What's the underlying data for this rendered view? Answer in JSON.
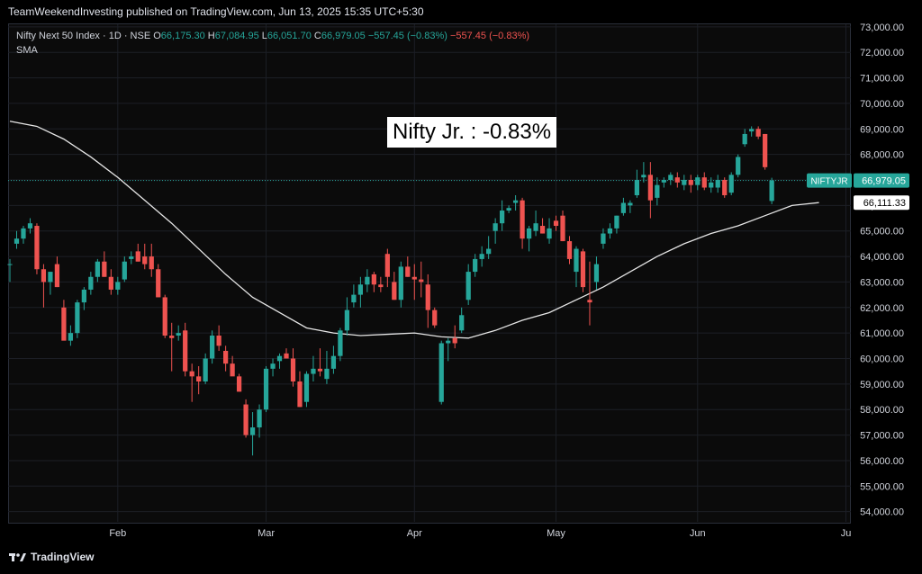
{
  "header": {
    "published": "TeamWeekendInvesting published on TradingView.com, Jun 13, 2025 15:35 UTC+5:30"
  },
  "legend": {
    "symbol": "Nifty Next 50 Index · 1D · NSE",
    "open_label": "O",
    "open": "66,175.30",
    "high_label": "H",
    "high": "67,084.95",
    "low_label": "L",
    "low": "66,051.70",
    "close_label": "C",
    "close": "66,979.05",
    "change": "−557.45 (−0.83%)",
    "change2": "−557.45 (−0.83%)",
    "indicator": "SMA"
  },
  "annotation": "Nifty Jr. : -0.83%",
  "footer": {
    "brand": "TradingView",
    "logo_icon": "tradingview-logo-icon"
  },
  "colors": {
    "up": "#26a69a",
    "down": "#ef5350",
    "sma": "#e6e6e6",
    "background": "#0b0b0b"
  },
  "chart_data": {
    "type": "candlestick",
    "y_ticks": [
      54000,
      55000,
      56000,
      57000,
      58000,
      59000,
      60000,
      61000,
      62000,
      63000,
      64000,
      65000,
      66000,
      67000,
      68000,
      69000,
      70000,
      71000,
      72000,
      73000
    ],
    "y_tick_labels": [
      "54,000.00",
      "55,000.00",
      "56,000.00",
      "57,000.00",
      "58,000.00",
      "59,000.00",
      "60,000.00",
      "61,000.00",
      "62,000.00",
      "63,000.00",
      "64,000.00",
      "65,000.00",
      "66,000.00",
      "67,000.00",
      "68,000.00",
      "69,000.00",
      "70,000.00",
      "71,000.00",
      "72,000.00",
      "73,000.00"
    ],
    "ylim": [
      53600,
      73100
    ],
    "x_tick_labels": [
      {
        "label": "Feb",
        "index": 16
      },
      {
        "label": "Mar",
        "index": 38
      },
      {
        "label": "Apr",
        "index": 60
      },
      {
        "label": "May",
        "index": 81
      },
      {
        "label": "Jun",
        "index": 102
      },
      {
        "label": "Ju",
        "index": 124
      }
    ],
    "x_count": 125,
    "last_price_tag": {
      "symbol": "NIFTYJR",
      "value": 66979.05,
      "label": "66,979.05"
    },
    "sma_tag": {
      "value": 66111.33,
      "label": "66,111.33"
    },
    "candles": [
      [
        63700,
        63900,
        63000,
        63700
      ],
      [
        64500,
        65000,
        64300,
        64700
      ],
      [
        64700,
        65200,
        64500,
        65100
      ],
      [
        65100,
        65500,
        64900,
        65300
      ],
      [
        65200,
        65300,
        63300,
        63500
      ],
      [
        63500,
        63700,
        62000,
        63000
      ],
      [
        63000,
        63400,
        62500,
        63400
      ],
      [
        63700,
        64000,
        62800,
        62800
      ],
      [
        62000,
        62300,
        60800,
        60700
      ],
      [
        60700,
        61300,
        60500,
        61000
      ],
      [
        61000,
        62300,
        60800,
        62200
      ],
      [
        62200,
        62800,
        61900,
        62700
      ],
      [
        62700,
        63400,
        62500,
        63200
      ],
      [
        63200,
        63900,
        63000,
        63800
      ],
      [
        63800,
        64200,
        63200,
        63200
      ],
      [
        63200,
        63500,
        62500,
        62700
      ],
      [
        62700,
        63200,
        62500,
        63000
      ],
      [
        63100,
        64000,
        63000,
        63800
      ],
      [
        63900,
        64200,
        63700,
        64000
      ],
      [
        64200,
        64500,
        63800,
        63800
      ],
      [
        64000,
        64500,
        63500,
        63700
      ],
      [
        64000,
        64500,
        63200,
        63500
      ],
      [
        63500,
        63700,
        62400,
        62400
      ],
      [
        62400,
        62500,
        60800,
        60900
      ],
      [
        60900,
        61400,
        59500,
        60800
      ],
      [
        60900,
        61300,
        60700,
        61000
      ],
      [
        61100,
        61400,
        59300,
        59500
      ],
      [
        59500,
        59800,
        58300,
        59300
      ],
      [
        59300,
        59700,
        58600,
        59100
      ],
      [
        59100,
        60200,
        59000,
        60000
      ],
      [
        60000,
        61100,
        59800,
        60900
      ],
      [
        60900,
        61300,
        60300,
        60500
      ],
      [
        60300,
        60500,
        59500,
        59800
      ],
      [
        59800,
        60100,
        59400,
        59300
      ],
      [
        59300,
        59400,
        58700,
        58700
      ],
      [
        58200,
        58400,
        56900,
        57000
      ],
      [
        57000,
        57900,
        56200,
        57300
      ],
      [
        57300,
        58200,
        56900,
        58000
      ],
      [
        58000,
        59700,
        57900,
        59600
      ],
      [
        59600,
        60000,
        59300,
        59800
      ],
      [
        59900,
        60200,
        59600,
        60100
      ],
      [
        60200,
        60400,
        60000,
        60000
      ],
      [
        60000,
        60400,
        58900,
        59100
      ],
      [
        59100,
        59500,
        58100,
        58100
      ],
      [
        58300,
        59500,
        58100,
        59400
      ],
      [
        59400,
        60100,
        59100,
        59600
      ],
      [
        59600,
        60400,
        59300,
        59500
      ],
      [
        59200,
        60300,
        59000,
        59600
      ],
      [
        59600,
        60500,
        59400,
        60100
      ],
      [
        60100,
        61200,
        59900,
        61100
      ],
      [
        61100,
        62400,
        60900,
        61900
      ],
      [
        62200,
        62900,
        62000,
        62500
      ],
      [
        62500,
        63200,
        62000,
        62900
      ],
      [
        62900,
        63500,
        62600,
        63200
      ],
      [
        63300,
        63400,
        62600,
        62900
      ],
      [
        62900,
        63200,
        62600,
        62800
      ],
      [
        64100,
        64300,
        62800,
        63200
      ],
      [
        63000,
        63400,
        62300,
        62300
      ],
      [
        62300,
        63800,
        62000,
        63600
      ],
      [
        63600,
        64000,
        63200,
        63200
      ],
      [
        63200,
        63700,
        62300,
        63100
      ],
      [
        63100,
        63800,
        62400,
        63000
      ],
      [
        62900,
        63300,
        61200,
        61900
      ],
      [
        61900,
        62000,
        61200,
        61300
      ],
      [
        58300,
        60700,
        58200,
        60600
      ],
      [
        60600,
        60800,
        59900,
        60700
      ],
      [
        60800,
        61300,
        60400,
        60600
      ],
      [
        61100,
        62000,
        61000,
        61700
      ],
      [
        62300,
        63700,
        62100,
        63400
      ],
      [
        63400,
        64100,
        63200,
        63900
      ],
      [
        63900,
        64400,
        63600,
        64100
      ],
      [
        64100,
        64800,
        63900,
        64300
      ],
      [
        65000,
        65500,
        64500,
        65300
      ],
      [
        65300,
        66200,
        65000,
        65800
      ],
      [
        65800,
        66000,
        65700,
        65900
      ],
      [
        66100,
        66400,
        65800,
        66200
      ],
      [
        66200,
        66300,
        64300,
        64700
      ],
      [
        64700,
        65200,
        64200,
        65100
      ],
      [
        65000,
        65800,
        64800,
        65300
      ],
      [
        65200,
        65500,
        64900,
        64900
      ],
      [
        64700,
        65500,
        64500,
        65100
      ],
      [
        65400,
        65600,
        65000,
        65200
      ],
      [
        65600,
        65800,
        64600,
        64600
      ],
      [
        64600,
        64800,
        63700,
        63900
      ],
      [
        63400,
        64400,
        62800,
        64300
      ],
      [
        64200,
        64300,
        62600,
        62800
      ],
      [
        62300,
        63800,
        61300,
        62200
      ],
      [
        63000,
        64000,
        62700,
        63700
      ],
      [
        64500,
        65100,
        64300,
        64900
      ],
      [
        64900,
        65300,
        64700,
        65100
      ],
      [
        65100,
        65600,
        64900,
        65600
      ],
      [
        65700,
        66300,
        65600,
        66100
      ],
      [
        66000,
        66200,
        65700,
        66100
      ],
      [
        66400,
        67400,
        66300,
        67000
      ],
      [
        67100,
        67700,
        66900,
        67200
      ],
      [
        67200,
        67700,
        65500,
        66200
      ],
      [
        66300,
        67100,
        66000,
        66800
      ],
      [
        66900,
        67100,
        66700,
        67000
      ],
      [
        67000,
        67300,
        66800,
        67200
      ],
      [
        67100,
        67300,
        66700,
        66900
      ],
      [
        66800,
        67200,
        66600,
        67000
      ],
      [
        67000,
        67200,
        66500,
        66800
      ],
      [
        66800,
        67200,
        66600,
        67100
      ],
      [
        67100,
        67300,
        66600,
        66700
      ],
      [
        66700,
        67100,
        66500,
        66900
      ],
      [
        66700,
        67200,
        66500,
        67000
      ],
      [
        67000,
        67100,
        66300,
        66400
      ],
      [
        66500,
        67300,
        66400,
        67200
      ],
      [
        67200,
        68000,
        67100,
        67900
      ],
      [
        68400,
        69000,
        68300,
        68800
      ],
      [
        68900,
        69100,
        68700,
        69000
      ],
      [
        69000,
        69100,
        68600,
        68700
      ],
      [
        68800,
        68800,
        67400,
        67500
      ],
      [
        66175.3,
        67084.95,
        66051.7,
        66979.05
      ]
    ],
    "sma": [
      [
        0,
        69300
      ],
      [
        4,
        69100
      ],
      [
        8,
        68600
      ],
      [
        12,
        67900
      ],
      [
        16,
        67100
      ],
      [
        20,
        66200
      ],
      [
        24,
        65300
      ],
      [
        28,
        64300
      ],
      [
        32,
        63300
      ],
      [
        36,
        62400
      ],
      [
        40,
        61800
      ],
      [
        44,
        61200
      ],
      [
        48,
        61000
      ],
      [
        52,
        60900
      ],
      [
        56,
        60950
      ],
      [
        60,
        61000
      ],
      [
        64,
        60850
      ],
      [
        68,
        60800
      ],
      [
        72,
        61100
      ],
      [
        76,
        61500
      ],
      [
        80,
        61800
      ],
      [
        84,
        62300
      ],
      [
        88,
        62800
      ],
      [
        92,
        63400
      ],
      [
        96,
        64000
      ],
      [
        100,
        64500
      ],
      [
        104,
        64900
      ],
      [
        108,
        65200
      ],
      [
        112,
        65600
      ],
      [
        116,
        66000
      ],
      [
        120,
        66111.33
      ]
    ]
  }
}
